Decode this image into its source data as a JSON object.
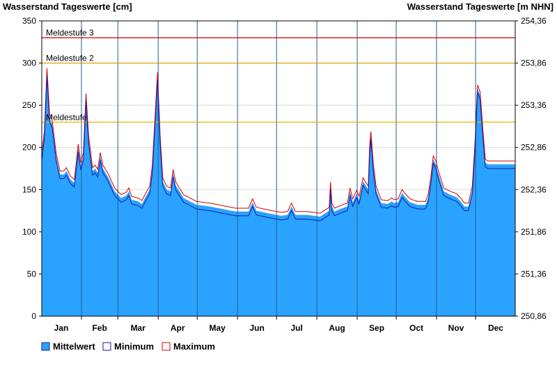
{
  "chart_data": {
    "type": "area",
    "left_axis_title": "Wasserstand Tageswerte [cm]",
    "right_axis_title": "Wasserstand Tageswerte [m NHN]",
    "ylim": [
      0,
      350
    ],
    "left_ticks": [
      "0",
      "50",
      "100",
      "150",
      "200",
      "250",
      "300",
      "350"
    ],
    "right_ticks": [
      "250,86",
      "251,36",
      "251,86",
      "252,36",
      "252,86",
      "253,36",
      "253,86",
      "254,36"
    ],
    "grid": true,
    "legend_position": "bottom-left",
    "months": [
      {
        "label": "Jan",
        "days": 31
      },
      {
        "label": "Feb",
        "days": 28
      },
      {
        "label": "Mar",
        "days": 31
      },
      {
        "label": "Apr",
        "days": 30
      },
      {
        "label": "May",
        "days": 31
      },
      {
        "label": "Jun",
        "days": 30
      },
      {
        "label": "Jul",
        "days": 31
      },
      {
        "label": "Aug",
        "days": 31
      },
      {
        "label": "Sep",
        "days": 30
      },
      {
        "label": "Oct",
        "days": 31
      },
      {
        "label": "Nov",
        "days": 30
      },
      {
        "label": "Dec",
        "days": 31
      }
    ],
    "thresholds": [
      {
        "label": "Meldestufe 3",
        "value": 330,
        "color": "#cc0000"
      },
      {
        "label": "Meldestufe 2",
        "value": 300,
        "color": "#e69500"
      },
      {
        "label": "Meldestufe",
        "value": 230,
        "color": "#f0b400"
      }
    ],
    "series": [
      {
        "name": "Mittelwert",
        "color": "#29a3ff"
      },
      {
        "name": "Minimum",
        "color": "#1a1aa6"
      },
      {
        "name": "Maximum",
        "color": "#d40000"
      }
    ],
    "mean_keypoints": [
      [
        1,
        190
      ],
      [
        3,
        215
      ],
      [
        5,
        290
      ],
      [
        7,
        235
      ],
      [
        9,
        228
      ],
      [
        12,
        190
      ],
      [
        15,
        168
      ],
      [
        18,
        168
      ],
      [
        20,
        172
      ],
      [
        23,
        162
      ],
      [
        26,
        158
      ],
      [
        28,
        185
      ],
      [
        29,
        200
      ],
      [
        31,
        178
      ],
      [
        33,
        190
      ],
      [
        35,
        260
      ],
      [
        37,
        210
      ],
      [
        40,
        172
      ],
      [
        42,
        175
      ],
      [
        44,
        170
      ],
      [
        46,
        190
      ],
      [
        48,
        175
      ],
      [
        52,
        165
      ],
      [
        57,
        148
      ],
      [
        62,
        140
      ],
      [
        66,
        143
      ],
      [
        68,
        148
      ],
      [
        70,
        138
      ],
      [
        75,
        136
      ],
      [
        78,
        133
      ],
      [
        81,
        142
      ],
      [
        84,
        150
      ],
      [
        86,
        175
      ],
      [
        88,
        230
      ],
      [
        90,
        285
      ],
      [
        92,
        210
      ],
      [
        94,
        160
      ],
      [
        97,
        150
      ],
      [
        100,
        148
      ],
      [
        102,
        170
      ],
      [
        104,
        155
      ],
      [
        110,
        140
      ],
      [
        120,
        132
      ],
      [
        130,
        130
      ],
      [
        140,
        127
      ],
      [
        150,
        124
      ],
      [
        160,
        124
      ],
      [
        163,
        135
      ],
      [
        166,
        125
      ],
      [
        175,
        122
      ],
      [
        185,
        119
      ],
      [
        190,
        120
      ],
      [
        193,
        130
      ],
      [
        196,
        120
      ],
      [
        205,
        120
      ],
      [
        215,
        118
      ],
      [
        222,
        125
      ],
      [
        223,
        155
      ],
      [
        224,
        130
      ],
      [
        226,
        124
      ],
      [
        232,
        128
      ],
      [
        236,
        130
      ],
      [
        238,
        148
      ],
      [
        240,
        135
      ],
      [
        243,
        145
      ],
      [
        245,
        138
      ],
      [
        248,
        160
      ],
      [
        250,
        155
      ],
      [
        252,
        150
      ],
      [
        253,
        195
      ],
      [
        254,
        215
      ],
      [
        256,
        175
      ],
      [
        258,
        150
      ],
      [
        262,
        134
      ],
      [
        267,
        133
      ],
      [
        270,
        136
      ],
      [
        272,
        134
      ],
      [
        275,
        135
      ],
      [
        278,
        146
      ],
      [
        280,
        142
      ],
      [
        284,
        135
      ],
      [
        290,
        132
      ],
      [
        296,
        132
      ],
      [
        298,
        140
      ],
      [
        300,
        160
      ],
      [
        302,
        186
      ],
      [
        304,
        180
      ],
      [
        306,
        168
      ],
      [
        310,
        148
      ],
      [
        315,
        144
      ],
      [
        320,
        141
      ],
      [
        323,
        136
      ],
      [
        326,
        130
      ],
      [
        329,
        130
      ],
      [
        332,
        150
      ],
      [
        334,
        200
      ],
      [
        336,
        270
      ],
      [
        338,
        262
      ],
      [
        340,
        220
      ],
      [
        342,
        182
      ],
      [
        344,
        180
      ],
      [
        365,
        180
      ]
    ],
    "minimum_offset": -5,
    "maximum_offset": 4
  }
}
